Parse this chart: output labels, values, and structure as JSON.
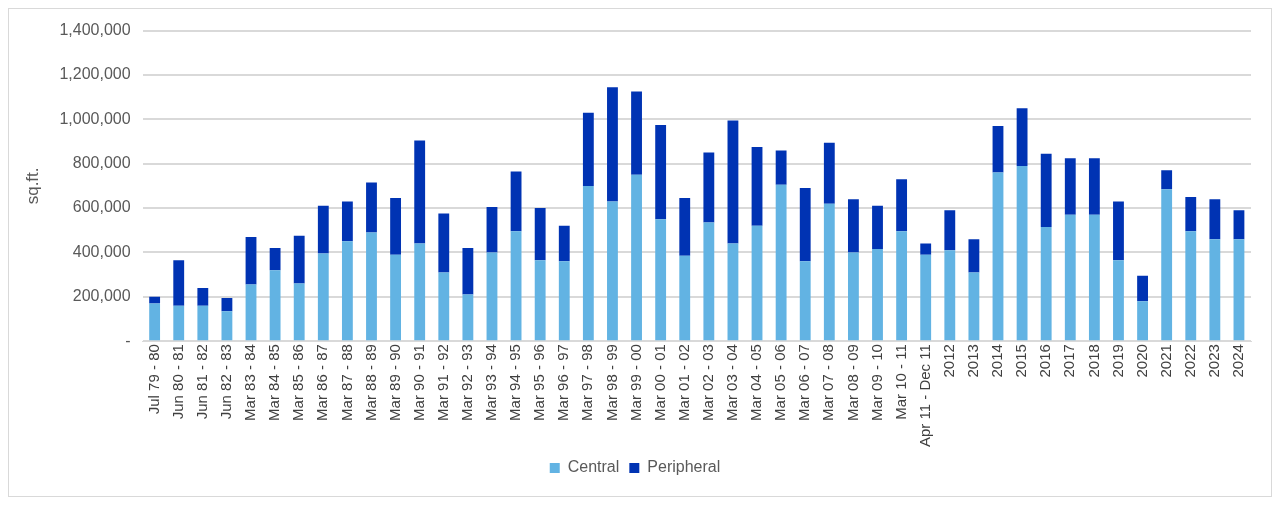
{
  "chart_data": {
    "type": "bar",
    "stacked": true,
    "ylabel": "sq.ft.",
    "categories": [
      "Jul 79 - 80",
      "Jun 80 - 81",
      "Jun 81 - 82",
      "Jun 82 - 83",
      "Mar 83 - 84",
      "Mar 84 - 85",
      "Mar 85 - 86",
      "Mar 86 - 87",
      "Mar 87 - 88",
      "Mar 88 - 89",
      "Mar 89 - 90",
      "Mar 90 - 91",
      "Mar 91 - 92",
      "Mar 92 - 93",
      "Mar 93 - 94",
      "Mar 94 - 95",
      "Mar 95 - 96",
      "Mar 96 - 97",
      "Mar 97 - 98",
      "Mar 98 - 99",
      "Mar 99 - 00",
      "Mar 00 - 01",
      "Mar 01 - 02",
      "Mar 02 - 03",
      "Mar 03 - 04",
      "Mar 04 - 05",
      "Mar 05 - 06",
      "Mar 06 - 07",
      "Mar 07 - 08",
      "Mar 08 - 09",
      "Mar 09 - 10",
      "Mar 10 - 11",
      "Apr 11 - Dec 11",
      "2012",
      "2013",
      "2014",
      "2015",
      "2016",
      "2017",
      "2018",
      "2019",
      "2020",
      "2021",
      "2022",
      "2023",
      "2024"
    ],
    "series": [
      {
        "name": "Central",
        "color": "#62b3e3",
        "values": [
          170000,
          160000,
          160000,
          135000,
          255000,
          320000,
          260000,
          395000,
          450000,
          490000,
          390000,
          440000,
          310000,
          210000,
          400000,
          495000,
          365000,
          360000,
          700000,
          630000,
          750000,
          550000,
          385000,
          535000,
          440000,
          520000,
          705000,
          360000,
          620000,
          400000,
          415000,
          495000,
          390000,
          410000,
          310000,
          760000,
          790000,
          515000,
          570000,
          570000,
          365000,
          180000,
          685000,
          495000,
          460000,
          460000
        ]
      },
      {
        "name": "Peripheral",
        "color": "#0033b3",
        "values": [
          30000,
          205000,
          80000,
          60000,
          215000,
          100000,
          215000,
          215000,
          180000,
          225000,
          255000,
          465000,
          265000,
          210000,
          205000,
          270000,
          235000,
          160000,
          330000,
          515000,
          375000,
          425000,
          260000,
          315000,
          555000,
          355000,
          155000,
          330000,
          275000,
          240000,
          195000,
          235000,
          50000,
          180000,
          150000,
          210000,
          260000,
          330000,
          255000,
          255000,
          265000,
          115000,
          85000,
          155000,
          180000,
          130000
        ]
      }
    ],
    "ylim": [
      0,
      1400000
    ],
    "yticks": [
      {
        "value": 0,
        "label": "-"
      },
      {
        "value": 200000,
        "label": "200,000"
      },
      {
        "value": 400000,
        "label": "400,000"
      },
      {
        "value": 600000,
        "label": "600,000"
      },
      {
        "value": 800000,
        "label": "800,000"
      },
      {
        "value": 1000000,
        "label": "1,000,000"
      },
      {
        "value": 1200000,
        "label": "1,200,000"
      },
      {
        "value": 1400000,
        "label": "1,400,000"
      }
    ],
    "grid": "y",
    "legend": "bottom"
  }
}
